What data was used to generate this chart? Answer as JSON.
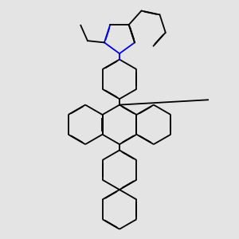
{
  "bg_color": "#e4e4e4",
  "bond_color": "#000000",
  "blue_color": "#0000dd",
  "lw": 1.3,
  "dbo": 0.012,
  "figsize": [
    3.0,
    3.0
  ],
  "dpi": 100
}
